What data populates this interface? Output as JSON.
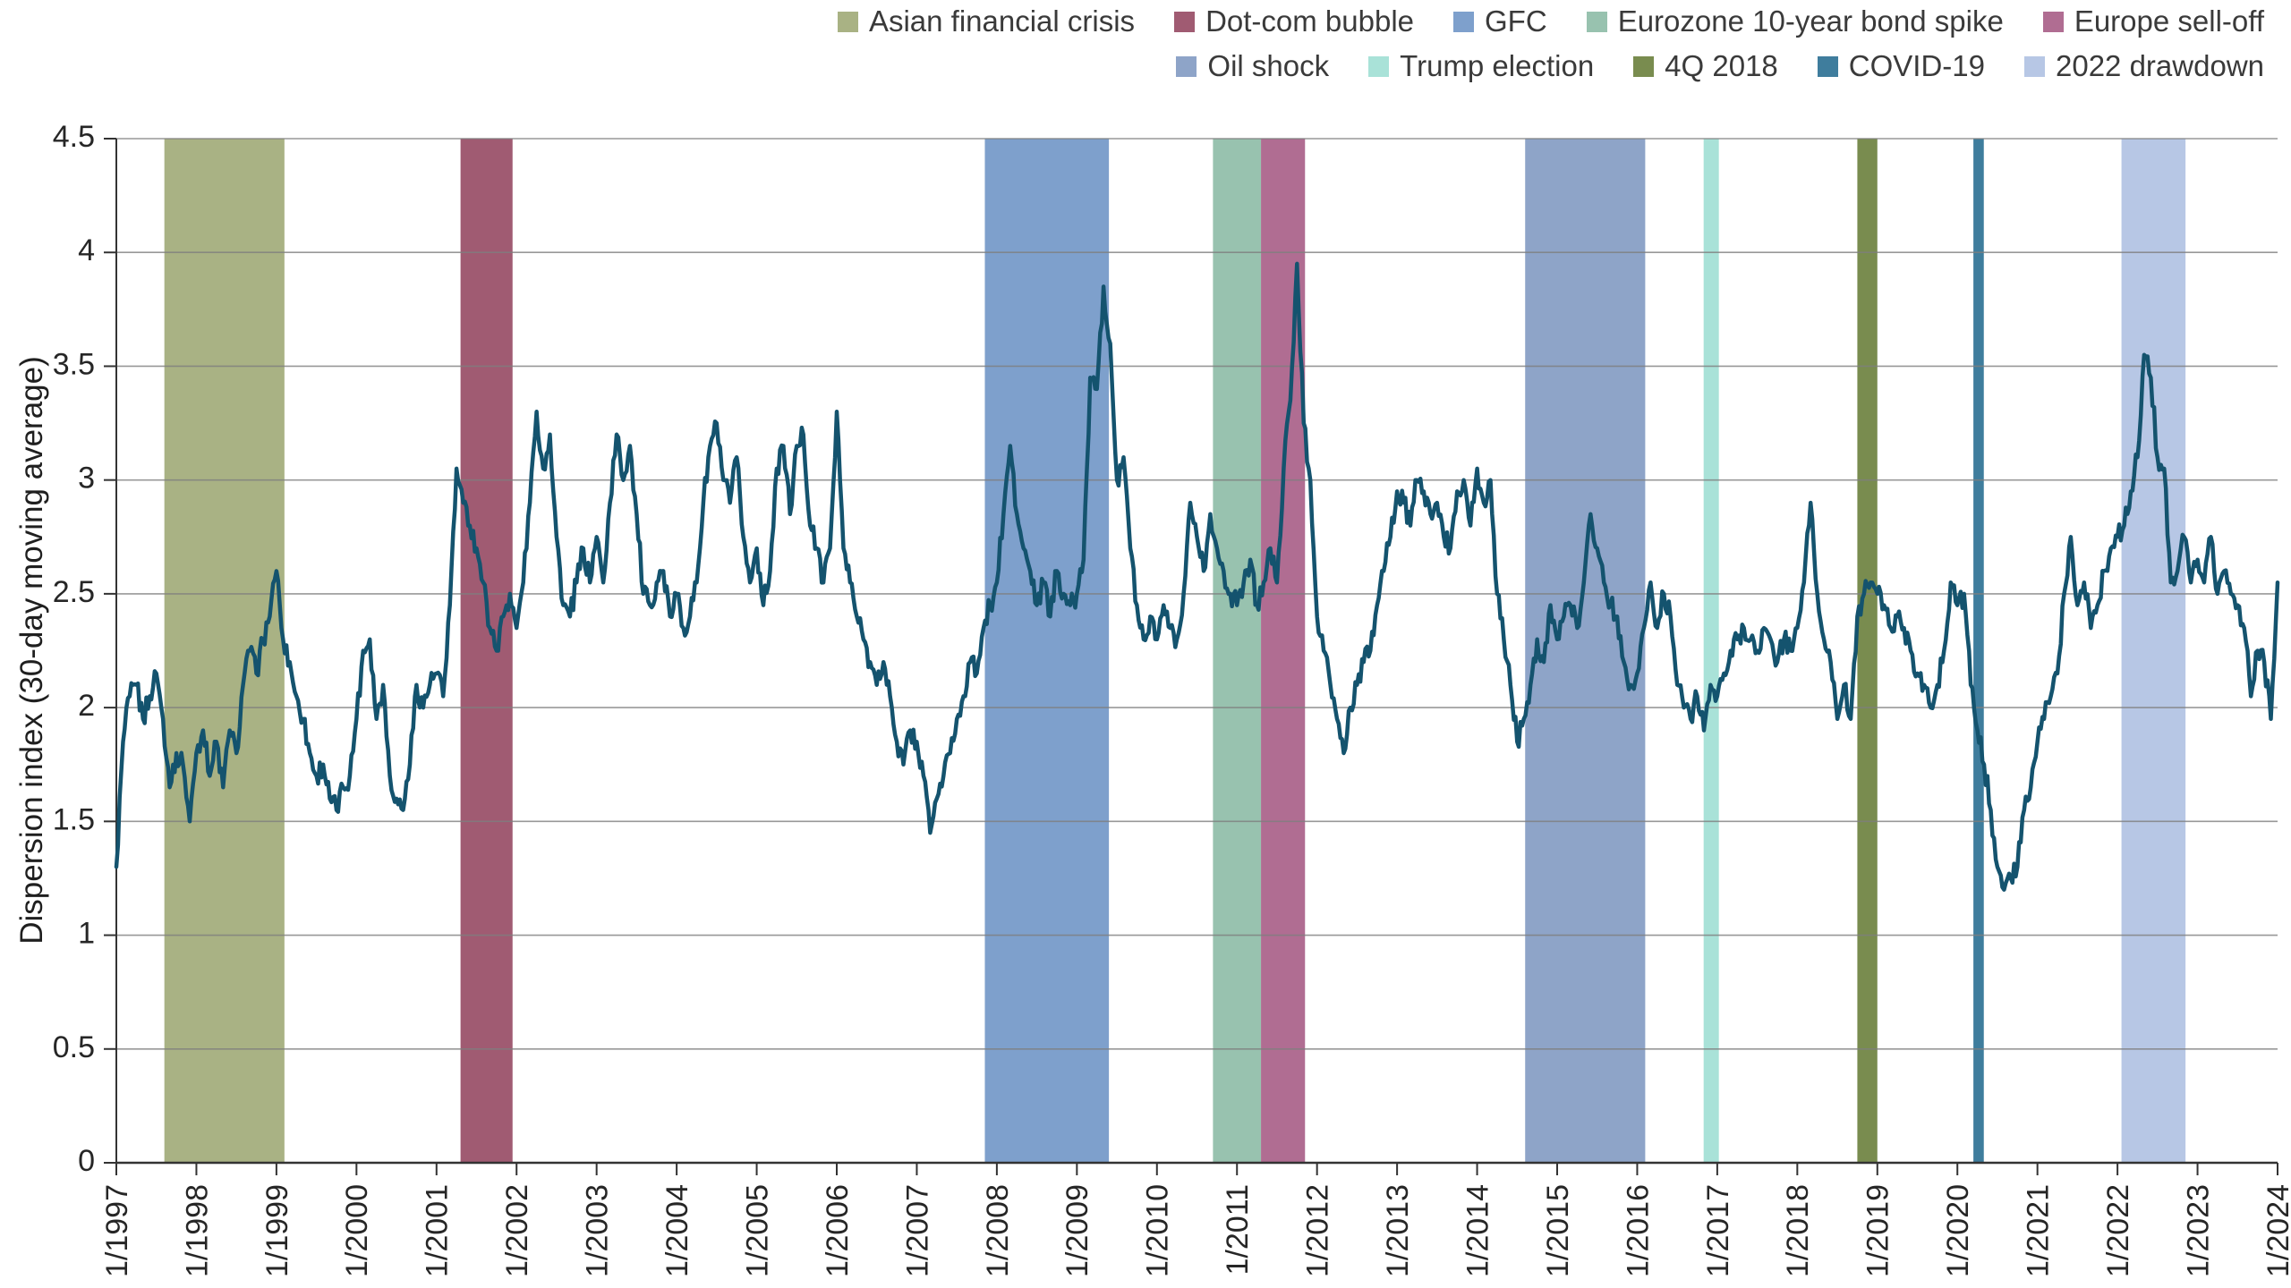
{
  "chart_data": {
    "type": "line",
    "title": "",
    "ylabel": "Dispersion index (30-day moving average)",
    "xlabel": "",
    "ylim": [
      0,
      4.5
    ],
    "y_tick_labels": [
      "0",
      "0.5",
      "1",
      "1.5",
      "2",
      "2.5",
      "3",
      "3.5",
      "4",
      "4.5"
    ],
    "x_range_years": [
      1997,
      2024
    ],
    "x_tick_labels": [
      "1/1997",
      "1/1998",
      "1/1999",
      "1/2000",
      "1/2001",
      "1/2002",
      "1/2003",
      "1/2004",
      "1/2005",
      "1/2006",
      "1/2007",
      "1/2008",
      "1/2009",
      "1/2010",
      "1/2011",
      "1/2012",
      "1/2013",
      "1/2014",
      "1/2015",
      "1/2016",
      "1/2017",
      "1/2018",
      "1/2019",
      "1/2020",
      "1/2021",
      "1/2022",
      "1/2023",
      "1/2024"
    ],
    "grid": true,
    "legend_position": "top-right",
    "line_color": "#14536e",
    "grid_color": "#7f7f7f",
    "axis_color": "#333333",
    "text_color": "#262626",
    "series": [
      {
        "name": "Dispersion index (30-day moving average)",
        "start": "1/1997",
        "interval": "monthly",
        "values": [
          1.3,
          1.85,
          2.05,
          2.1,
          1.95,
          2.05,
          2.15,
          1.95,
          1.65,
          1.8,
          1.75,
          1.5,
          1.8,
          1.9,
          1.7,
          1.85,
          1.65,
          1.9,
          1.8,
          2.1,
          2.25,
          2.15,
          2.3,
          2.4,
          2.6,
          2.3,
          2.2,
          2.05,
          1.95,
          1.8,
          1.7,
          1.75,
          1.6,
          1.55,
          1.65,
          1.7,
          1.95,
          2.25,
          2.3,
          1.95,
          2.1,
          1.7,
          1.6,
          1.55,
          1.75,
          2.1,
          2.0,
          2.1,
          2.15,
          2.05,
          2.45,
          3.05,
          2.9,
          2.8,
          2.7,
          2.55,
          2.35,
          2.25,
          2.4,
          2.5,
          2.35,
          2.55,
          2.9,
          3.3,
          3.05,
          3.2,
          2.75,
          2.45,
          2.4,
          2.55,
          2.7,
          2.55,
          2.75,
          2.55,
          2.9,
          3.2,
          3.0,
          3.15,
          2.85,
          2.5,
          2.45,
          2.55,
          2.6,
          2.4,
          2.5,
          2.35,
          2.4,
          2.55,
          2.9,
          3.15,
          3.25,
          3.0,
          2.9,
          3.1,
          2.75,
          2.55,
          2.7,
          2.45,
          2.6,
          3.05,
          3.15,
          2.85,
          3.15,
          3.2,
          2.8,
          2.7,
          2.55,
          2.7,
          3.3,
          2.7,
          2.55,
          2.4,
          2.3,
          2.2,
          2.1,
          2.2,
          2.05,
          1.85,
          1.75,
          1.9,
          1.85,
          1.7,
          1.45,
          1.6,
          1.7,
          1.8,
          1.95,
          2.05,
          2.2,
          2.15,
          2.35,
          2.45,
          2.55,
          2.85,
          3.15,
          2.85,
          2.7,
          2.6,
          2.45,
          2.55,
          2.4,
          2.6,
          2.5,
          2.45,
          2.5,
          2.65,
          3.45,
          3.4,
          3.85,
          3.6,
          3.0,
          3.1,
          2.7,
          2.45,
          2.3,
          2.4,
          2.3,
          2.45,
          2.35,
          2.3,
          2.5,
          2.9,
          2.75,
          2.6,
          2.85,
          2.7,
          2.6,
          2.5,
          2.45,
          2.55,
          2.65,
          2.45,
          2.55,
          2.7,
          2.55,
          3.05,
          3.35,
          3.95,
          3.25,
          3.0,
          2.4,
          2.25,
          2.1,
          1.95,
          1.8,
          2.0,
          2.1,
          2.2,
          2.25,
          2.45,
          2.6,
          2.75,
          2.95,
          2.9,
          2.8,
          3.0,
          2.95,
          2.85,
          2.9,
          2.75,
          2.7,
          2.95,
          3.0,
          2.8,
          3.05,
          2.9,
          3.0,
          2.5,
          2.3,
          2.1,
          1.85,
          1.95,
          2.1,
          2.3,
          2.2,
          2.45,
          2.3,
          2.4,
          2.45,
          2.35,
          2.55,
          2.85,
          2.7,
          2.55,
          2.45,
          2.4,
          2.2,
          2.1,
          2.15,
          2.35,
          2.55,
          2.35,
          2.5,
          2.4,
          2.1,
          2.0,
          1.95,
          2.05,
          1.9,
          2.1,
          2.05,
          2.15,
          2.25,
          2.3,
          2.35,
          2.3,
          2.25,
          2.35,
          2.3,
          2.2,
          2.3,
          2.25,
          2.35,
          2.55,
          2.9,
          2.5,
          2.3,
          2.2,
          1.95,
          2.1,
          1.95,
          2.4,
          2.5,
          2.55,
          2.5,
          2.45,
          2.35,
          2.4,
          2.35,
          2.25,
          2.15,
          2.1,
          2.0,
          2.1,
          2.25,
          2.55,
          2.45,
          2.5,
          2.1,
          1.9,
          1.75,
          1.55,
          1.3,
          1.2,
          1.25,
          1.3,
          1.55,
          1.65,
          1.85,
          1.95,
          2.05,
          2.15,
          2.5,
          2.75,
          2.45,
          2.55,
          2.35,
          2.45,
          2.6,
          2.7,
          2.75,
          2.8,
          2.95,
          3.1,
          3.55,
          3.45,
          3.1,
          3.05,
          2.55,
          2.6,
          2.75,
          2.55,
          2.65,
          2.55,
          2.75,
          2.5,
          2.6,
          2.5,
          2.45,
          2.35,
          2.05,
          2.25,
          2.2,
          1.95,
          2.55
        ]
      }
    ],
    "events": [
      {
        "label": "Asian financial crisis",
        "color": "#a9b284",
        "start": 1997.6,
        "end": 1999.1
      },
      {
        "label": "Dot-com bubble",
        "color": "#a05b72",
        "start": 2001.3,
        "end": 2001.95
      },
      {
        "label": "GFC",
        "color": "#7ea0cc",
        "start": 2007.85,
        "end": 2009.4
      },
      {
        "label": "Eurozone 10-year bond spike",
        "color": "#98c2af",
        "start": 2010.7,
        "end": 2011.3
      },
      {
        "label": "Europe sell-off",
        "color": "#b06d92",
        "start": 2011.3,
        "end": 2011.85
      },
      {
        "label": "Oil shock",
        "color": "#8ea4c8",
        "start": 2014.6,
        "end": 2016.1
      },
      {
        "label": "Trump election",
        "color": "#a9e2d8",
        "start": 2016.83,
        "end": 2017.02
      },
      {
        "label": "4Q 2018",
        "color": "#798c4f",
        "start": 2018.75,
        "end": 2019.0
      },
      {
        "label": "COVID-19",
        "color": "#3f7d9d",
        "start": 2020.2,
        "end": 2020.33
      },
      {
        "label": "2022 drawdown",
        "color": "#b7c7e5",
        "start": 2022.05,
        "end": 2022.85
      }
    ],
    "legend_rows": [
      [
        0,
        1,
        2,
        3,
        4
      ],
      [
        5,
        6,
        7,
        8,
        9
      ]
    ]
  }
}
